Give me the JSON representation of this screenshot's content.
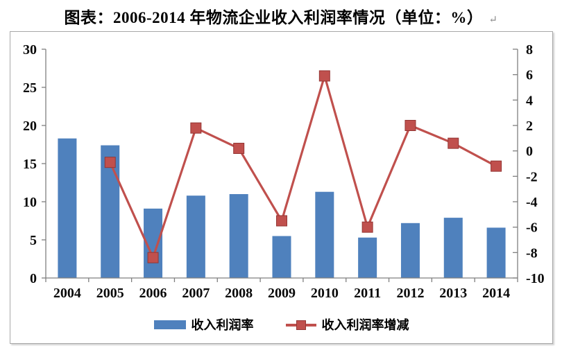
{
  "title": "图表：2006-2014 年物流企业收入利润率情况（单位：%）",
  "paragraph_mark": "↵",
  "colors": {
    "bar": "#4f81bd",
    "line": "#c0504d",
    "marker_border": "#943634",
    "axis": "#7f7f7f",
    "frame_border": "#a8a8a8",
    "text": "#000000"
  },
  "legend": {
    "position": "bottom-center",
    "items": [
      {
        "label": "收入利润率",
        "swatch": "blue-bar"
      },
      {
        "label": "收入利润率增减",
        "swatch": "red-line-square-marker"
      }
    ]
  },
  "chart_data": {
    "type": "bar+line combo",
    "title": "图表：2006-2014 年物流企业收入利润率情况（单位：%）",
    "categories": [
      "2004",
      "2005",
      "2006",
      "2007",
      "2008",
      "2009",
      "2010",
      "2011",
      "2012",
      "2013",
      "2014"
    ],
    "series": [
      {
        "name": "收入利润率",
        "type": "bar",
        "axis": "left",
        "color": "#4f81bd",
        "values": [
          18.3,
          17.4,
          9.1,
          10.8,
          11.0,
          5.5,
          11.3,
          5.3,
          7.2,
          7.9,
          6.6
        ]
      },
      {
        "name": "收入利润率增减",
        "type": "line",
        "axis": "right",
        "color": "#c0504d",
        "marker": "square",
        "values": [
          null,
          -0.9,
          -8.4,
          1.8,
          0.2,
          -5.5,
          5.9,
          -6.0,
          2.0,
          0.6,
          -1.2
        ]
      }
    ],
    "left_axis": {
      "min": 0,
      "max": 30,
      "ticks": [
        30,
        25,
        20,
        15,
        10,
        5,
        0
      ]
    },
    "right_axis": {
      "min": -10,
      "max": 8,
      "ticks": [
        8,
        6,
        4,
        2,
        0,
        -2,
        -4,
        -6,
        -8,
        -10
      ]
    },
    "grid": false,
    "plot_background": "#ffffff"
  }
}
